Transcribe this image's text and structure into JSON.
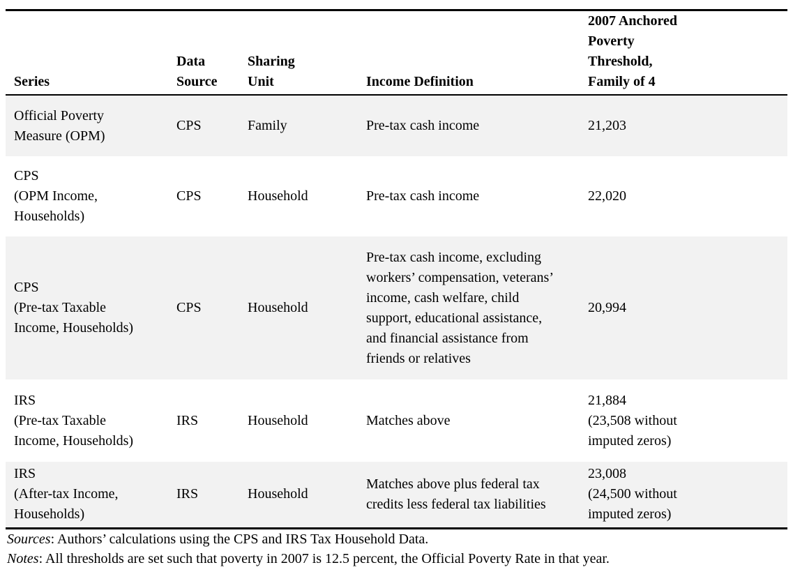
{
  "table": {
    "headers": {
      "series": "Series",
      "data_source": "Data\nSource",
      "sharing_unit": "Sharing\nUnit",
      "income_definition": "Income Definition",
      "threshold": "2007 Anchored\nPoverty\nThreshold,\nFamily of 4"
    },
    "rows": [
      {
        "series": "Official Poverty\nMeasure (OPM)",
        "data_source": "CPS",
        "sharing_unit": "Family",
        "income_definition": "Pre-tax cash income",
        "threshold": "21,203"
      },
      {
        "series": "CPS\n(OPM Income,\nHouseholds)",
        "data_source": "CPS",
        "sharing_unit": "Household",
        "income_definition": "Pre-tax cash income",
        "threshold": "22,020"
      },
      {
        "series": "CPS\n(Pre-tax Taxable\nIncome, Households)",
        "data_source": "CPS",
        "sharing_unit": "Household",
        "income_definition": "Pre-tax cash income, excluding\nworkers’ compensation, veterans’\nincome, cash welfare, child\nsupport, educational assistance,\nand financial assistance from\nfriends or relatives",
        "threshold": "20,994"
      },
      {
        "series": "IRS\n(Pre-tax Taxable\nIncome, Households)",
        "data_source": "IRS",
        "sharing_unit": "Household",
        "income_definition": "Matches above",
        "threshold": "21,884\n(23,508 without\nimputed zeros)"
      },
      {
        "series": "IRS\n(After-tax Income,\nHouseholds)",
        "data_source": "IRS",
        "sharing_unit": "Household",
        "income_definition": "Matches above plus federal tax\ncredits less federal tax liabilities",
        "threshold": "23,008\n(24,500 without\nimputed zeros)"
      }
    ]
  },
  "footer": {
    "sources_label": "Sources",
    "sources_text": ": Authors’ calculations using the CPS and IRS Tax Household Data.",
    "notes_label": "Notes",
    "notes_text": ": All thresholds are set such that poverty in 2007 is 12.5 percent, the Official Poverty Rate in that year."
  },
  "colors": {
    "stripe": "#f2f2f2",
    "rule": "#000000",
    "text": "#000000",
    "background": "#ffffff"
  }
}
